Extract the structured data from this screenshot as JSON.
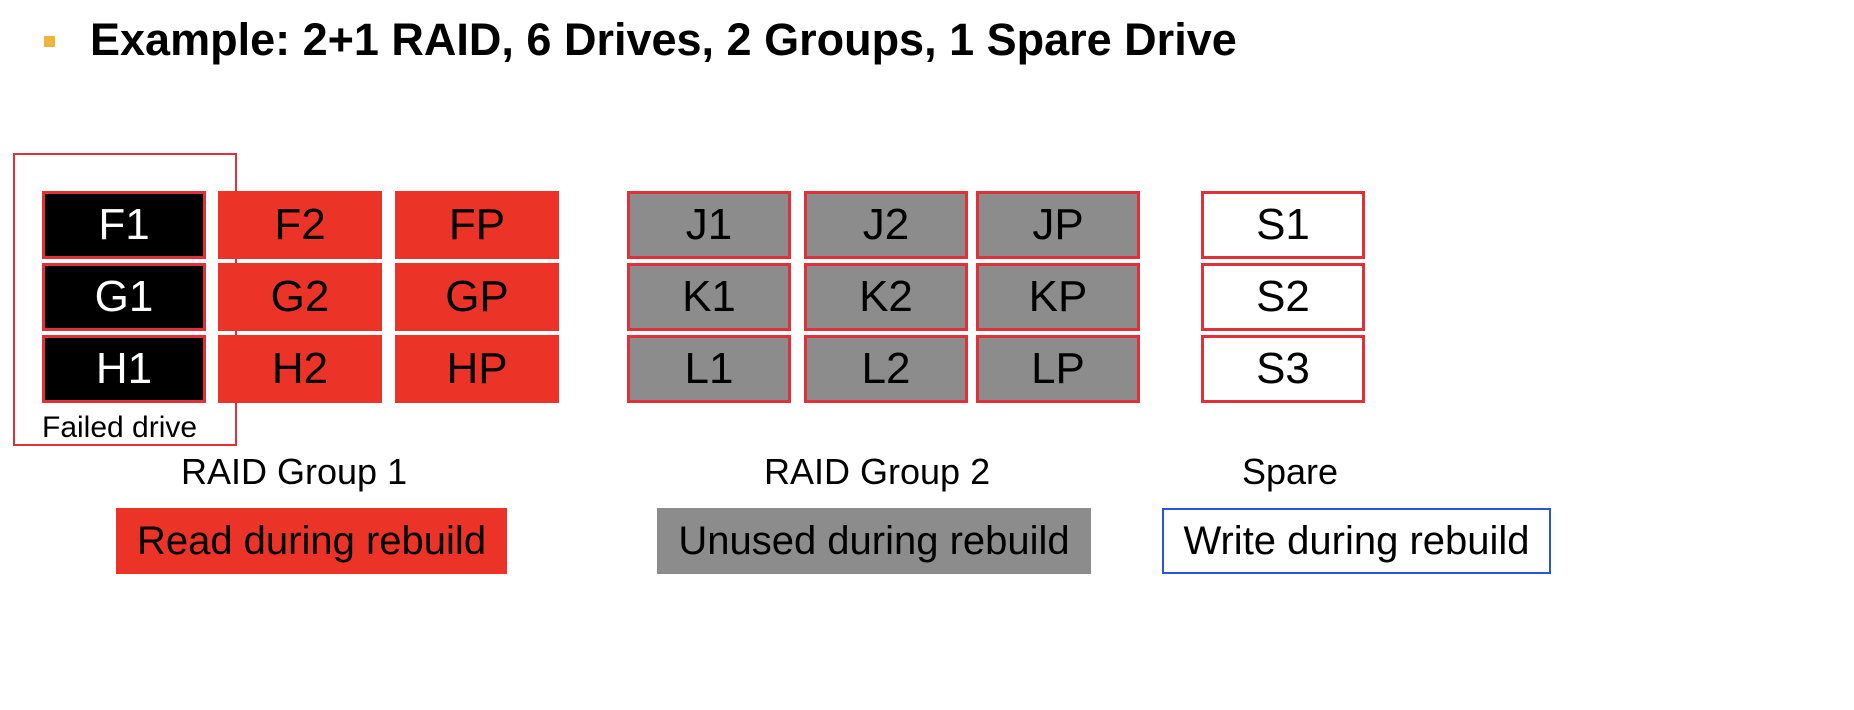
{
  "title": "Example: 2+1 RAID, 6 Drives, 2 Groups, 1 Spare Drive",
  "colors": {
    "failed": "#000000",
    "read": "#eb3327",
    "unused": "#8c8c8c",
    "spare": "#ffffff",
    "border": "#e0303a",
    "write_border": "#2a55d8",
    "bullet": "#f0b43c"
  },
  "failed_label": "Failed drive",
  "groups": {
    "group1": {
      "label": "RAID Group 1",
      "rows": [
        [
          "F1",
          "F2",
          "FP"
        ],
        [
          "G1",
          "G2",
          "GP"
        ],
        [
          "H1",
          "H2",
          "HP"
        ]
      ]
    },
    "group2": {
      "label": "RAID Group 2",
      "rows": [
        [
          "J1",
          "J2",
          "JP"
        ],
        [
          "K1",
          "K2",
          "KP"
        ],
        [
          "L1",
          "L2",
          "LP"
        ]
      ]
    },
    "spare": {
      "label": "Spare",
      "rows": [
        [
          "S1"
        ],
        [
          "S2"
        ],
        [
          "S3"
        ]
      ]
    }
  },
  "legend": {
    "read": "Read during rebuild",
    "unused": "Unused during rebuild",
    "write": "Write during rebuild"
  }
}
